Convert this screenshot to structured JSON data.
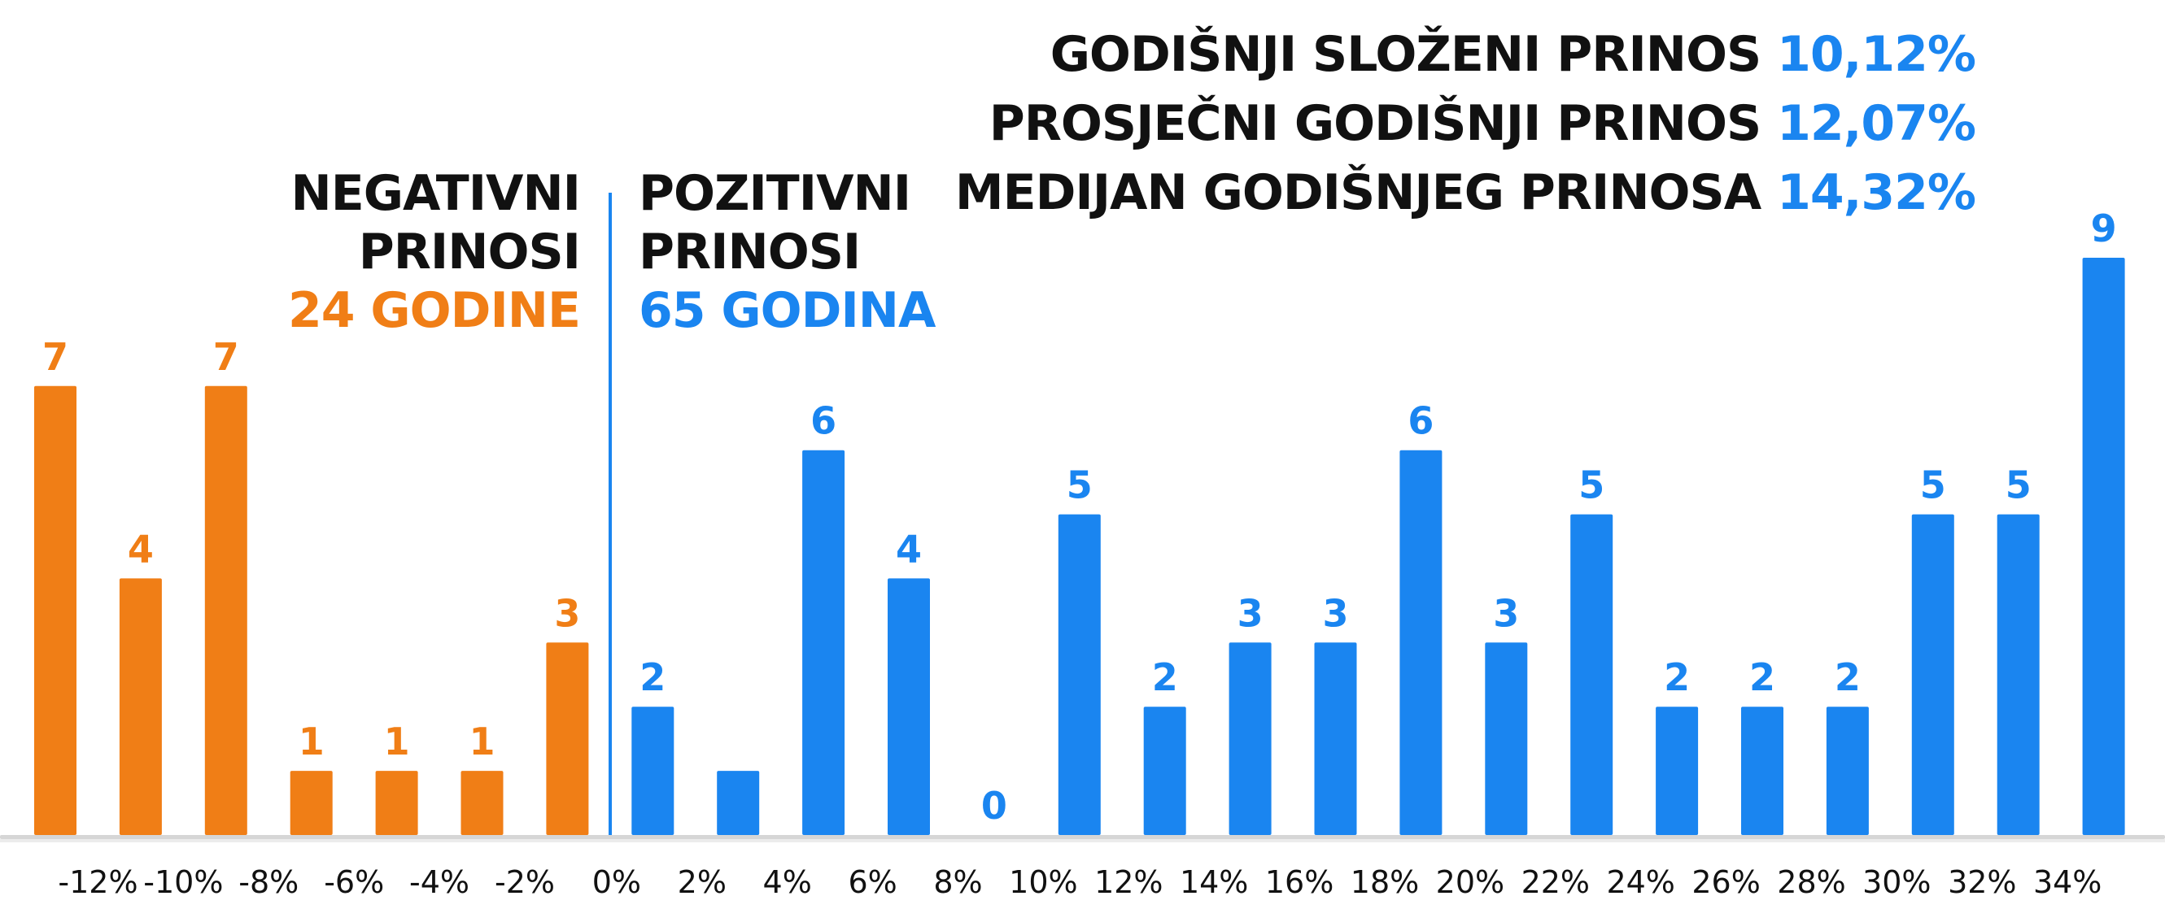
{
  "stats": [
    {
      "label": "GODIŠNJI SLOŽENI PRINOS",
      "value": "10,12%"
    },
    {
      "label": "PROSJEČNI GODIŠNJI PRINOS",
      "value": "12,07%"
    },
    {
      "label": "MEDIJAN GODIŠNJEG PRINOSA",
      "value": "14,32%"
    }
  ],
  "negative_block": {
    "line1": "NEGATIVNI",
    "line2": "PRINOSI",
    "count": "24 GODINE"
  },
  "positive_block": {
    "line1": "POZITIVNI",
    "line2": "PRINOSI",
    "count": "65 GODINA"
  },
  "colors": {
    "negative": "#f07e16",
    "positive": "#1a85f0",
    "baseline": "#d6d6d6",
    "text": "#111111"
  },
  "chart_data": {
    "type": "bar",
    "title": "",
    "xlabel": "",
    "ylabel": "",
    "ylim": [
      0,
      9
    ],
    "grid": false,
    "legend": "none",
    "categories": [
      "-12%",
      "-10%",
      "-8%",
      "-6%",
      "-4%",
      "-2%",
      "0%",
      "2%",
      "4%",
      "6%",
      "8%",
      "10%",
      "12%",
      "14%",
      "16%",
      "18%",
      "20%",
      "22%",
      "24%",
      "26%",
      "28%",
      "30%",
      "32%",
      "34%"
    ],
    "bars": [
      {
        "value": 7,
        "label": "7",
        "group": "negative"
      },
      {
        "value": 4,
        "label": "4",
        "group": "negative"
      },
      {
        "value": 7,
        "label": "7",
        "group": "negative"
      },
      {
        "value": 1,
        "label": "1",
        "group": "negative"
      },
      {
        "value": 1,
        "label": "1",
        "group": "negative"
      },
      {
        "value": 1,
        "label": "1",
        "group": "negative"
      },
      {
        "value": 3,
        "label": "3",
        "group": "negative"
      },
      {
        "value": 2,
        "label": "2",
        "group": "positive"
      },
      {
        "value": 1,
        "label": "",
        "group": "positive"
      },
      {
        "value": 6,
        "label": "6",
        "group": "positive"
      },
      {
        "value": 4,
        "label": "4",
        "group": "positive"
      },
      {
        "value": 0,
        "label": "0",
        "group": "positive"
      },
      {
        "value": 5,
        "label": "5",
        "group": "positive"
      },
      {
        "value": 2,
        "label": "2",
        "group": "positive"
      },
      {
        "value": 3,
        "label": "3",
        "group": "positive"
      },
      {
        "value": 3,
        "label": "3",
        "group": "positive"
      },
      {
        "value": 6,
        "label": "6",
        "group": "positive"
      },
      {
        "value": 3,
        "label": "3",
        "group": "positive"
      },
      {
        "value": 5,
        "label": "5",
        "group": "positive"
      },
      {
        "value": 2,
        "label": "2",
        "group": "positive"
      },
      {
        "value": 2,
        "label": "2",
        "group": "positive"
      },
      {
        "value": 2,
        "label": "2",
        "group": "positive"
      },
      {
        "value": 5,
        "label": "5",
        "group": "positive"
      },
      {
        "value": 5,
        "label": "5",
        "group": "positive"
      },
      {
        "value": 9,
        "label": "9",
        "group": "positive"
      }
    ]
  }
}
